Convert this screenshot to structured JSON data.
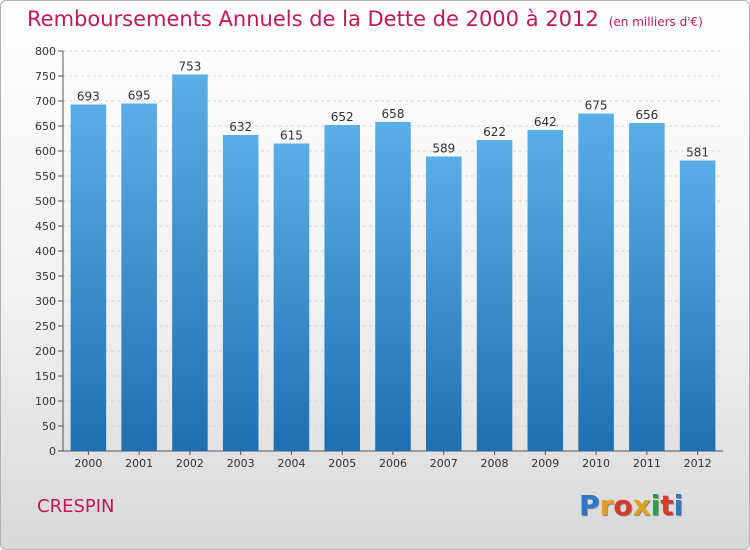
{
  "header": {
    "title": "Remboursements Annuels de la Dette de 2000 à 2012",
    "unit": "(en milliers d'€)"
  },
  "footer": {
    "commune": "CRESPIN",
    "logo_letters": [
      "P",
      "r",
      "o",
      "x",
      "i",
      "t",
      "i"
    ],
    "logo_colors": [
      "#2a78c8",
      "#e89a1e",
      "#d83a2a",
      "#e0a01a",
      "#2aa04a",
      "#d83a2a",
      "#2a78c8"
    ]
  },
  "chart_data": {
    "type": "bar",
    "categories": [
      "2000",
      "2001",
      "2002",
      "2003",
      "2004",
      "2005",
      "2006",
      "2007",
      "2008",
      "2009",
      "2010",
      "2011",
      "2012"
    ],
    "values": [
      693,
      695,
      753,
      632,
      615,
      652,
      658,
      589,
      622,
      642,
      675,
      656,
      581
    ],
    "ylim": [
      0,
      800
    ],
    "yticks": [
      0,
      50,
      100,
      150,
      200,
      250,
      300,
      350,
      400,
      450,
      500,
      550,
      600,
      650,
      700,
      750,
      800
    ],
    "grid": true,
    "bar_color_top": "#5aaee8",
    "bar_color_bottom": "#1f6fb0",
    "label_color": "#333333"
  }
}
